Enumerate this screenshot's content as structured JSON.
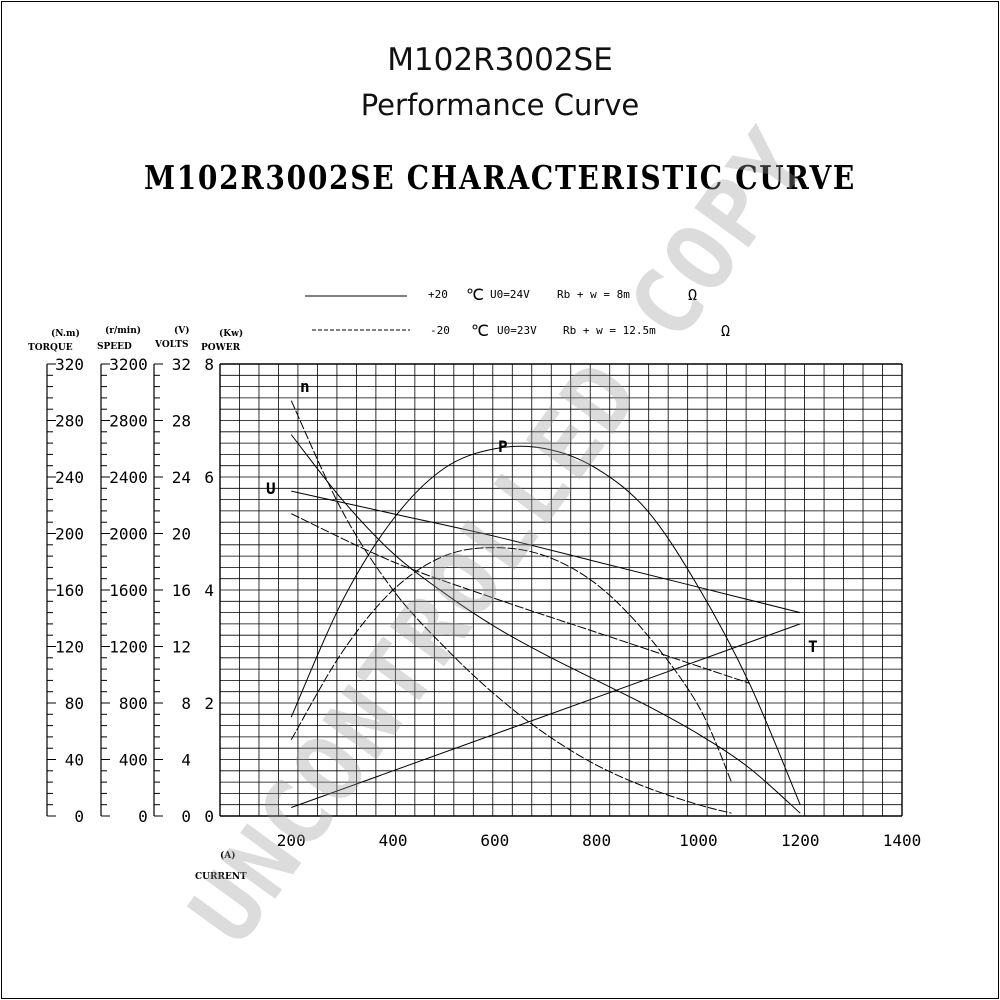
{
  "header": {
    "model": "M102R3002SE",
    "subtitle": "Performance Curve"
  },
  "chart_data": {
    "type": "line",
    "title": "M102R3002SE CHARACTERISTIC CURVE",
    "watermark": "UNCONTROLLED COPY",
    "legend": [
      {
        "style": "solid",
        "temp": "+20",
        "unit": "℃",
        "voltage": "U0=24V",
        "resistance": "Rb + w = 8m",
        "ohm": "Ω"
      },
      {
        "style": "dashed",
        "temp": "-20",
        "unit": "℃",
        "voltage": "U0=23V",
        "resistance": "Rb + w = 12.5m",
        "ohm": "Ω"
      }
    ],
    "x_axis": {
      "label": "CURRENT",
      "unit": "(A)",
      "ticks": [
        200,
        400,
        600,
        800,
        1000,
        1200,
        1400
      ],
      "range": [
        60,
        1400
      ]
    },
    "y_axes": [
      {
        "label": "TORQUE",
        "unit": "(N.m)",
        "range": [
          0,
          320
        ],
        "ticks": [
          0,
          40,
          80,
          120,
          160,
          200,
          240,
          280,
          320
        ]
      },
      {
        "label": "SPEED",
        "unit": "(r/min)",
        "range": [
          0,
          3200
        ],
        "ticks": [
          0,
          400,
          800,
          1200,
          1600,
          2000,
          2400,
          2800,
          3200
        ]
      },
      {
        "label": "VOLTS",
        "unit": "(V)",
        "range": [
          0,
          32
        ],
        "ticks": [
          0,
          4,
          8,
          12,
          16,
          20,
          24,
          28,
          32
        ]
      },
      {
        "label": "POWER",
        "unit": "(Kw)",
        "range": [
          0,
          8
        ],
        "ticks": [
          0,
          2,
          4,
          6,
          8
        ]
      }
    ],
    "series": [
      {
        "name": "n",
        "temp": "+20",
        "x": [
          200,
          300,
          400,
          500,
          600,
          700,
          800,
          900,
          1000,
          1100,
          1200
        ],
        "y": [
          6.75,
          5.6,
          4.65,
          3.95,
          3.35,
          2.85,
          2.4,
          1.95,
          1.45,
          0.85,
          0.05
        ]
      },
      {
        "name": "n",
        "temp": "-20",
        "x": [
          200,
          300,
          400,
          500,
          600,
          700,
          800,
          900,
          1000,
          1065
        ],
        "y": [
          7.35,
          5.4,
          4.0,
          3.0,
          2.15,
          1.45,
          0.9,
          0.5,
          0.2,
          0.05
        ]
      },
      {
        "name": "U",
        "temp": "+20",
        "x": [
          200,
          400,
          600,
          800,
          1000,
          1200
        ],
        "y": [
          5.75,
          5.35,
          4.95,
          4.5,
          4.05,
          3.6
        ]
      },
      {
        "name": "U",
        "temp": "-20",
        "x": [
          200,
          400,
          600,
          800,
          1000,
          1100
        ],
        "y": [
          5.35,
          4.5,
          3.85,
          3.25,
          2.65,
          2.35
        ]
      },
      {
        "name": "P",
        "temp": "+20",
        "x": [
          200,
          300,
          400,
          500,
          600,
          700,
          800,
          900,
          1000,
          1100,
          1200
        ],
        "y": [
          1.75,
          3.8,
          5.25,
          6.15,
          6.5,
          6.5,
          6.15,
          5.4,
          4.05,
          2.35,
          0.2
        ]
      },
      {
        "name": "P",
        "temp": "-20",
        "x": [
          200,
          300,
          400,
          500,
          600,
          700,
          800,
          900,
          1000,
          1065
        ],
        "y": [
          1.35,
          2.9,
          4.0,
          4.6,
          4.75,
          4.6,
          4.1,
          3.2,
          1.95,
          0.6
        ]
      },
      {
        "name": "T",
        "temp": "+20",
        "x": [
          200,
          1200
        ],
        "y": [
          0.15,
          3.4
        ]
      }
    ]
  }
}
